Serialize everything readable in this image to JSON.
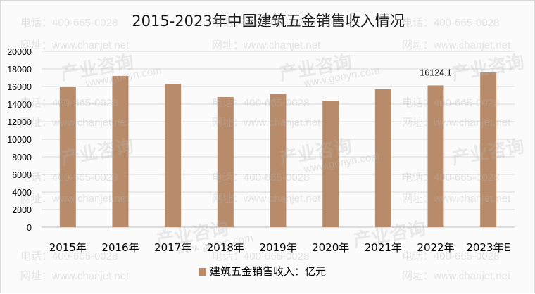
{
  "watermark": {
    "phone": "电话：400-665-0028",
    "site": "网址：www.chanjet.net",
    "brand": "产业咨询",
    "brand_url": "www.gonyn.com"
  },
  "chart_data": {
    "type": "bar",
    "title": "2015-2023年中国建筑五金销售收入情况",
    "categories": [
      "2015年",
      "2016年",
      "2017年",
      "2018年",
      "2019年",
      "2020年",
      "2021年",
      "2022年",
      "2023年E"
    ],
    "series": [
      {
        "name": "建筑五金销售收入：亿元",
        "values": [
          16000,
          17200,
          16300,
          14800,
          15200,
          14400,
          15700,
          16124.1,
          17600
        ],
        "data_labels": [
          "",
          "",
          "",
          "",
          "",
          "",
          "",
          "16124.1",
          ""
        ]
      }
    ],
    "ylim": [
      0,
      20000
    ],
    "yticks": [
      0,
      2000,
      4000,
      6000,
      8000,
      10000,
      12000,
      14000,
      16000,
      18000,
      20000
    ],
    "grid": true,
    "legend": "bottom-center",
    "colors": {
      "bar": "#b88b6a",
      "grid": "#d9d9d9",
      "text": "#000000"
    }
  }
}
